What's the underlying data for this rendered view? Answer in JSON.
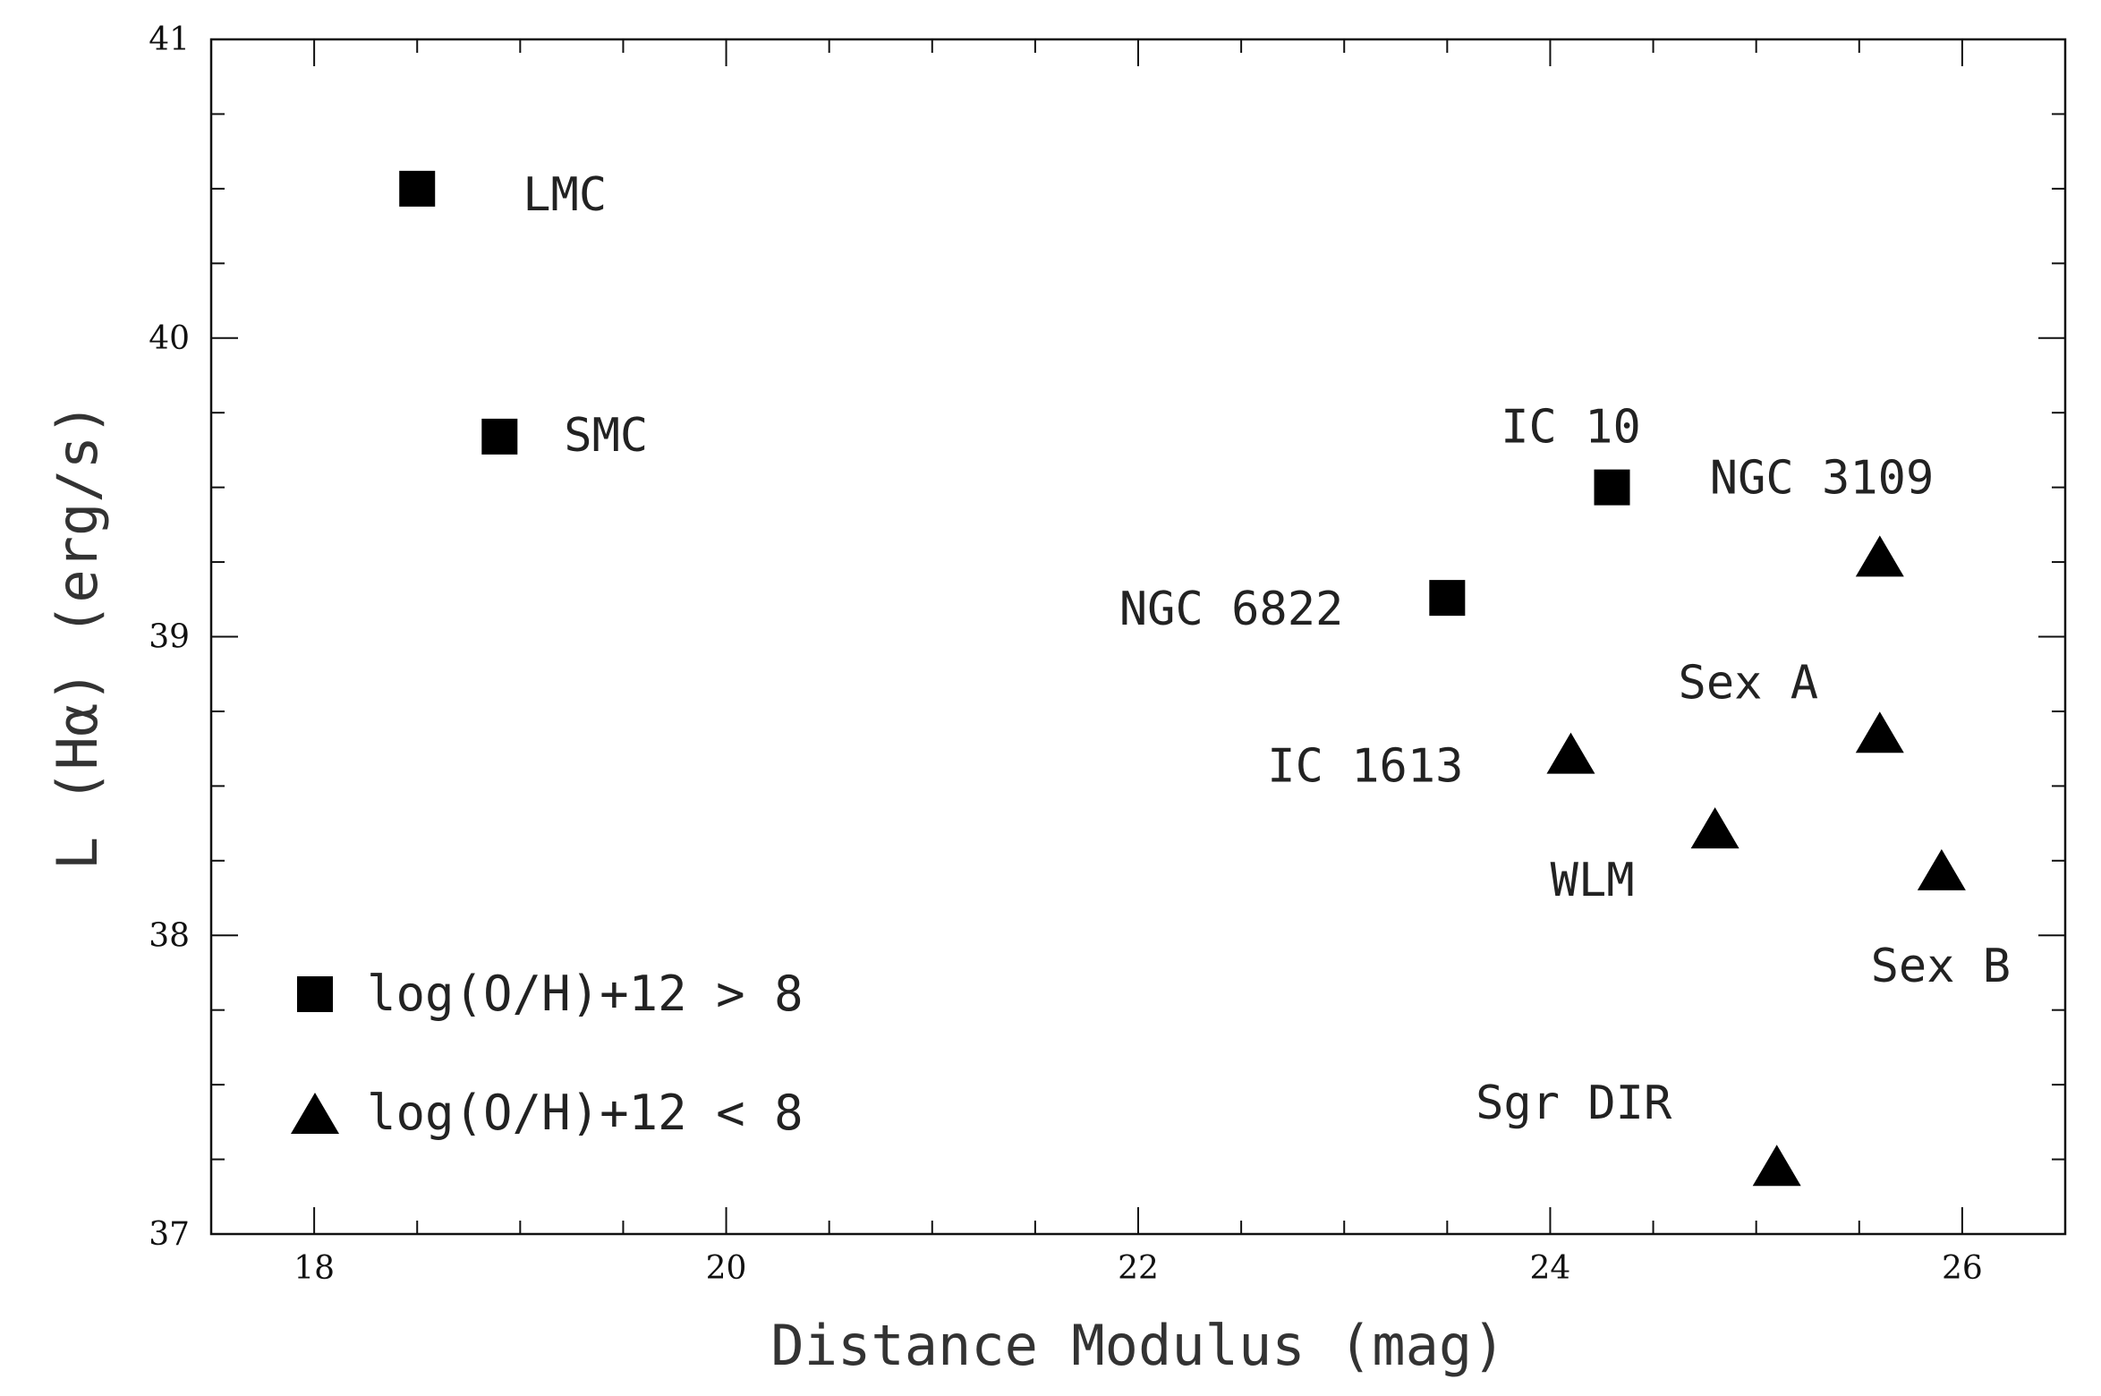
{
  "chart_data": {
    "type": "scatter",
    "xlabel": "Distance Modulus (mag)",
    "ylabel": "L (Hα) (erg/s)",
    "xlim": [
      17.5,
      26.5
    ],
    "ylim": [
      37,
      41
    ],
    "x_ticks": [
      18,
      20,
      22,
      24,
      26
    ],
    "y_ticks": [
      37,
      38,
      39,
      40,
      41
    ],
    "x_minor_step": 0.5,
    "y_minor_step": 0.25,
    "grid": false,
    "legend_position": "bottom-left",
    "legend": [
      {
        "marker": "square",
        "label": "log(O/H)+12 > 8"
      },
      {
        "marker": "triangle",
        "label": "log(O/H)+12 < 8"
      }
    ],
    "points": [
      {
        "label": "LMC",
        "x": 18.5,
        "y": 40.5,
        "marker": "square"
      },
      {
        "label": "SMC",
        "x": 18.9,
        "y": 39.67,
        "marker": "square"
      },
      {
        "label": "IC 10",
        "x": 24.3,
        "y": 39.5,
        "marker": "square"
      },
      {
        "label": "NGC 6822",
        "x": 23.5,
        "y": 39.13,
        "marker": "square"
      },
      {
        "label": "NGC 3109",
        "x": 25.6,
        "y": 39.27,
        "marker": "triangle"
      },
      {
        "label": "Sex A",
        "x": 25.6,
        "y": 38.68,
        "marker": "triangle"
      },
      {
        "label": "IC 1613",
        "x": 24.1,
        "y": 38.61,
        "marker": "triangle"
      },
      {
        "label": "WLM",
        "x": 24.8,
        "y": 38.36,
        "marker": "triangle"
      },
      {
        "label": "Sex B",
        "x": 25.9,
        "y": 38.22,
        "marker": "triangle"
      },
      {
        "label": "Sgr DIR",
        "x": 25.1,
        "y": 37.23,
        "marker": "triangle"
      }
    ]
  }
}
